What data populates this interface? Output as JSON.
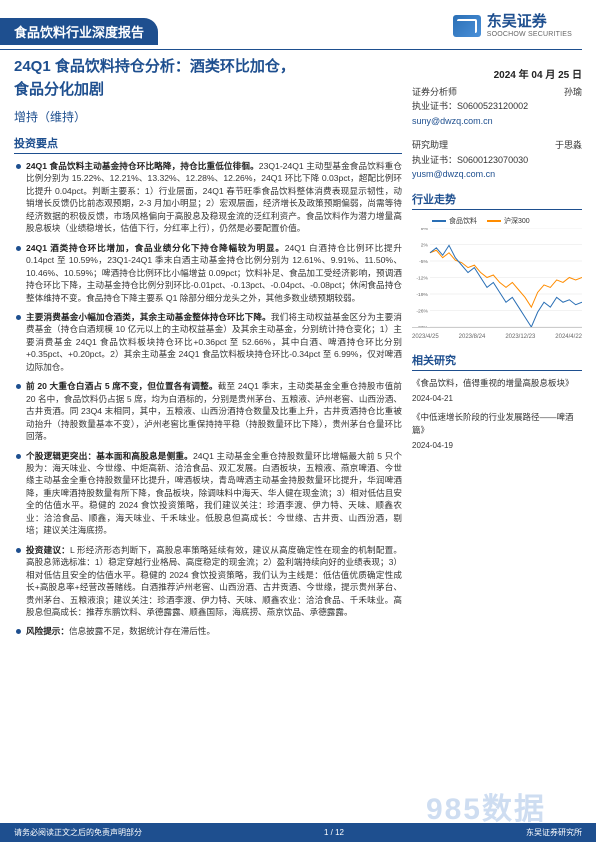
{
  "doc": {
    "header_bar": "食品饮料行业深度报告",
    "brand_cn": "东吴证券",
    "brand_en": "SOOCHOW SECURITIES",
    "title_l1": "24Q1 食品饮料持仓分析：酒类环比加仓，",
    "title_l2": "食品分化加剧",
    "date": "2024 年 04 月 25 日",
    "rating": "增持（维持）",
    "section_invest": "投资要点",
    "section_risk_lead": "风险提示：",
    "section_risk_body": "信息披露不足，数据统计存在滞后性。",
    "footer_left": "请务必阅读正文之后的免责声明部分",
    "footer_right_org": "东吴证券研究所",
    "page": "1 / 12",
    "watermark": "985数据"
  },
  "points": [
    {
      "lead": "24Q1 食品饮料主动基金持仓环比略降，持仓比重低位徘徊。",
      "body": "23Q1-24Q1 主动型基金食品饮料重仓比例分别为 15.22%、12.21%、13.32%、12.28%、12.26%，24Q1 环比下降 0.03pct，超配比例环比提升 0.04pct。判断主要系：1）行业层面，24Q1 春节旺季食品饮料整体消费表现显示韧性，动销增长反馈仍比前态观预期，2-3 月加小明显；2）宏观层面，经济增长及政策预期偏弱，尚需等待经济数据的积极反馈，市场风格偏向于高股息及稳现金流的泛红利资产。食品饮料作为潜力增量高股息板块（业绩稳增长，估值下行，分红率上行），仍然是必要配置价值。"
    },
    {
      "lead": "24Q1 酒类持仓环比增加，食品业绩分化下持仓降幅较为明显。",
      "body": "24Q1 白酒持仓比例环比提升 0.14pct 至 10.59%，23Q1-24Q1 季末白酒主动基金持仓比例分别为 12.61%、9.91%、11.50%、10.46%、10.59%；啤酒持仓比例环比小幅增益 0.09pct；饮料补足、食品加工受经济影响，预调酒持仓环比下降，主动基金持仓比例分别环比-0.01pct、-0.13pct、-0.04pct、-0.08pct；休闲食品持仓整体维持不变。食品持仓下降主要系 Q1 除部分细分龙头之外，其他多数业绩预期较弱。"
    },
    {
      "lead": "主要消费基金小幅加仓酒类，其余主动基金整体持仓环比下降。",
      "body": "我们将主动权益基金区分为主要消费基金（持仓白酒规模 10 亿元以上的主动权益基金）及其余主动基金，分别统计持仓变化；1）主要消费基金 24Q1 食品饮料板块持仓环比+0.36pct 至 52.66%，其中白酒、啤酒持仓环比分别+0.35pct、+0.20pct。2）其余主动基金 24Q1 食品饮料板块持仓环比-0.34pct 至 6.99%，仅对啤酒边际加仓。"
    },
    {
      "lead": "前 20 大重仓白酒占 5 席不变，但位置各有调整。",
      "body": "截至 24Q1 季末，主动类基金全重仓持股市值前 20 名中，食品饮料仍占据 5 席，均为白酒标的，分别是贵州茅台、五粮液、泸州老窖、山西汾酒、古井贡酒。同 23Q4 末相同，其中，五粮液、山西汾酒持仓数量及比重上升，古井贡酒持仓比重被动抬升（持股数量基本不变），泸州老窖比重保持持平稳（持股数量环比下降），贵州茅台仓量环比回落。"
    },
    {
      "lead": "个股逻辑更突出：基本面和高股息是侧重。",
      "body": "24Q1 主动基金全重仓持股数量环比增幅最大前 5 只个股为：海天味业、今世缘、中炬高新、洽洽食品、双汇发展。白酒板块，五粮液、燕京啤酒、今世缘主动基金全重仓持股数量环比提升，啤酒板块，青岛啤酒主动基金持股数量环比提升，华润啤酒降，重庆啤酒持股数量有所下降，食品板块，除调味料中海天、华人健在现金流；3）相对低估且安全的估值水平。稳健的 2024 食饮投资策略，我们建议关注：珍酒李渡、伊力特、天味、顺鑫农业：洽洽食品、顺鑫，海天味业、千禾味业。低股息但高成长：今世缘、古井贡、山西汾酒，剔培；建议关注海底捞。"
    },
    {
      "lead": "投资建议：",
      "body": "L 形经济形态判断下，高股息率策略延续有效，建议从高度确定性在现金的机制配置。高股息筛选标准：1）稳定穿越行业格局、高度稳定的现金流；2）盈利端持续向好的业绩表现；3）相对低估且安全的估值水平。稳健的 2024 食饮投资策略，我们认为主线是：低估值优质确定性成长+高股息率+经营改善赌线。白酒推荐泸州老窖、山西汾酒、古井贡酒、今世缘，提示贵州茅台、贵州茅台、五粮液浪；建议关注：珍酒李渡、伊力特、天味、顺鑫农业：洽洽食品、千禾味业。高股息但高成长：推荐东鹏饮料、承德露露、顺鑫国际，海底捞、燕京饮品、承德露露。"
    }
  ],
  "side": {
    "analyst_heading": "证券分析师",
    "analyst_name": "孙瑜",
    "analyst_cert_label": "执业证书：",
    "analyst_cert": "S0600523120002",
    "analyst_email": "suny@dwzq.com.cn",
    "assist_heading": "研究助理",
    "assist_name": "于思淼",
    "assist_cert_label": "执业证书：",
    "assist_cert": "S0600123070030",
    "assist_email": "yusm@dwzq.com.cn",
    "trend_heading": "行业走势",
    "legend_a": "食品饮料",
    "legend_b": "沪深300",
    "related_heading": "相关研究",
    "related": [
      {
        "t": "《食品饮料，值得重视的增量高股息板块》",
        "d": "2024-04-21"
      },
      {
        "t": "《中低速增长阶段的行业发展路径——啤酒篇》",
        "d": "2024-04-19"
      }
    ]
  },
  "chart": {
    "colors": {
      "a": "#2a6fb5",
      "b": "#ff8c00",
      "grid": "#e5e5e5",
      "axis": "#999"
    },
    "ylim": [
      -30,
      10
    ],
    "yticks": [
      "9%",
      "2%",
      "-5%",
      "-12%",
      "-19%",
      "-26%",
      "-33%"
    ],
    "xlabels": [
      "2023/4/25",
      "2023/8/24",
      "2023/12/23",
      "2024/4/22"
    ],
    "series_a": [
      0,
      2,
      -1,
      3,
      -2,
      -5,
      -8,
      -6,
      -10,
      -14,
      -12,
      -16,
      -20,
      -18,
      -22,
      -26,
      -30,
      -24,
      -20,
      -22,
      -18,
      -20,
      -19,
      -21,
      -20
    ],
    "series_b": [
      0,
      1,
      -2,
      0,
      -3,
      -4,
      -6,
      -5,
      -8,
      -10,
      -9,
      -12,
      -14,
      -12,
      -15,
      -18,
      -22,
      -16,
      -13,
      -14,
      -11,
      -12,
      -10,
      -11,
      -10
    ]
  }
}
